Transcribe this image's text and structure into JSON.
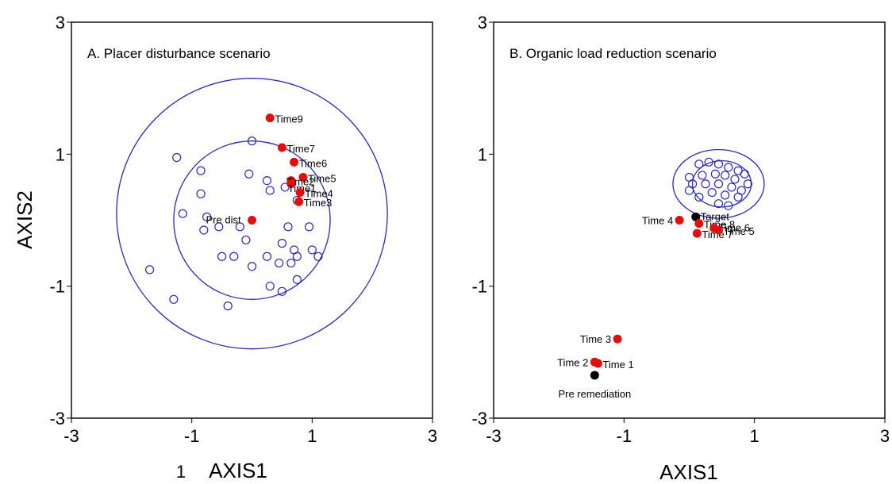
{
  "chart_data": [
    {
      "type": "scatter",
      "panel": "A",
      "title": "A. Placer disturbance scenario",
      "xlabel": "AXIS1",
      "ylabel": "AXIS2",
      "xlim": [
        -3,
        3
      ],
      "ylim": [
        -3,
        3
      ],
      "xticks": [
        -3,
        -1,
        1,
        3
      ],
      "yticks": [
        -3,
        -1,
        1,
        3
      ],
      "stray_label": "1",
      "ellipses": [
        {
          "cx": 0.0,
          "cy": 0.1,
          "rx": 2.25,
          "ry": 2.05,
          "color": "#2b2bb0"
        },
        {
          "cx": 0.0,
          "cy": 0.0,
          "rx": 1.3,
          "ry": 1.2,
          "color": "#2b2bb0"
        }
      ],
      "reference_sites": [
        [
          -1.25,
          0.95
        ],
        [
          0.0,
          1.2
        ],
        [
          -0.85,
          0.75
        ],
        [
          -0.05,
          0.7
        ],
        [
          0.25,
          0.6
        ],
        [
          0.3,
          0.45
        ],
        [
          -0.85,
          0.4
        ],
        [
          0.75,
          0.3
        ],
        [
          0.55,
          0.5
        ],
        [
          -1.15,
          0.1
        ],
        [
          -0.75,
          0.05
        ],
        [
          -0.8,
          -0.15
        ],
        [
          -0.55,
          -0.1
        ],
        [
          -0.2,
          -0.1
        ],
        [
          0.6,
          -0.1
        ],
        [
          0.95,
          -0.1
        ],
        [
          -0.1,
          -0.3
        ],
        [
          0.5,
          -0.35
        ],
        [
          0.7,
          -0.45
        ],
        [
          1.0,
          -0.45
        ],
        [
          0.75,
          -0.55
        ],
        [
          -0.5,
          -0.55
        ],
        [
          -0.3,
          -0.55
        ],
        [
          0.25,
          -0.55
        ],
        [
          0.45,
          -0.65
        ],
        [
          0.65,
          -0.65
        ],
        [
          0.0,
          -0.7
        ],
        [
          1.1,
          -0.55
        ],
        [
          0.3,
          -1.0
        ],
        [
          0.5,
          -1.08
        ],
        [
          0.75,
          -0.9
        ],
        [
          -1.7,
          -0.75
        ],
        [
          -1.3,
          -1.2
        ],
        [
          -0.4,
          -1.3
        ]
      ],
      "test_sites": [
        {
          "label": "Pre dist",
          "x": 0.0,
          "y": 0.0
        },
        {
          "label": "Time9",
          "x": 0.3,
          "y": 1.55
        },
        {
          "label": "Time7",
          "x": 0.5,
          "y": 1.1
        },
        {
          "label": "Time6",
          "x": 0.7,
          "y": 0.88
        },
        {
          "label": "Time5",
          "x": 0.85,
          "y": 0.65
        },
        {
          "label": "Time2",
          "x": 0.65,
          "y": 0.6
        },
        {
          "label": "Time1",
          "x": 0.65,
          "y": 0.55
        },
        {
          "label": "Time4",
          "x": 0.8,
          "y": 0.42
        },
        {
          "label": "Time3",
          "x": 0.78,
          "y": 0.28
        }
      ]
    },
    {
      "type": "scatter",
      "panel": "B",
      "title": "B. Organic load reduction scenario",
      "xlabel": "AXIS1",
      "ylabel": "",
      "xlim": [
        -3,
        3
      ],
      "ylim": [
        -3,
        3
      ],
      "xticks": [
        -3,
        -1,
        1,
        3
      ],
      "yticks": [
        -3,
        -1,
        1,
        3
      ],
      "ellipses": [
        {
          "cx": 0.45,
          "cy": 0.55,
          "rx": 0.7,
          "ry": 0.52,
          "color": "#2b2bb0"
        },
        {
          "cx": 0.5,
          "cy": 0.55,
          "rx": 0.45,
          "ry": 0.35,
          "color": "#2b2bb0"
        }
      ],
      "reference_sites": [
        [
          0.15,
          0.85
        ],
        [
          0.3,
          0.88
        ],
        [
          0.45,
          0.85
        ],
        [
          0.6,
          0.8
        ],
        [
          0.75,
          0.75
        ],
        [
          0.85,
          0.7
        ],
        [
          0.0,
          0.65
        ],
        [
          0.2,
          0.68
        ],
        [
          0.4,
          0.7
        ],
        [
          0.55,
          0.68
        ],
        [
          0.7,
          0.62
        ],
        [
          0.9,
          0.55
        ],
        [
          0.05,
          0.55
        ],
        [
          0.25,
          0.55
        ],
        [
          0.45,
          0.55
        ],
        [
          0.65,
          0.5
        ],
        [
          0.8,
          0.45
        ],
        [
          0.0,
          0.45
        ],
        [
          0.35,
          0.42
        ],
        [
          0.55,
          0.38
        ],
        [
          0.75,
          0.35
        ],
        [
          0.15,
          0.35
        ],
        [
          0.45,
          0.25
        ],
        [
          0.6,
          0.22
        ]
      ],
      "test_sites": [
        {
          "label": "Target",
          "x": 0.1,
          "y": 0.05,
          "color": "#000000"
        },
        {
          "label": "Time 4",
          "x": -0.15,
          "y": 0.0
        },
        {
          "label": "Time 8",
          "x": 0.15,
          "y": -0.05
        },
        {
          "label": "Time 7",
          "x": 0.12,
          "y": -0.2
        },
        {
          "label": "Time 6",
          "x": 0.38,
          "y": -0.12
        },
        {
          "label": "Time 5",
          "x": 0.45,
          "y": -0.15
        },
        {
          "label": "Time 3",
          "x": -1.1,
          "y": -1.8
        },
        {
          "label": "Time 2",
          "x": -1.45,
          "y": -2.15
        },
        {
          "label": "Time 1",
          "x": -1.4,
          "y": -2.17
        },
        {
          "label": "Pre remediation",
          "x": -1.45,
          "y": -2.35,
          "color": "#000000"
        }
      ]
    }
  ],
  "colors": {
    "frame": "#000000",
    "ellipse": "#2b2bb0",
    "reference": "#2b2bb0",
    "test": "#e01010"
  }
}
